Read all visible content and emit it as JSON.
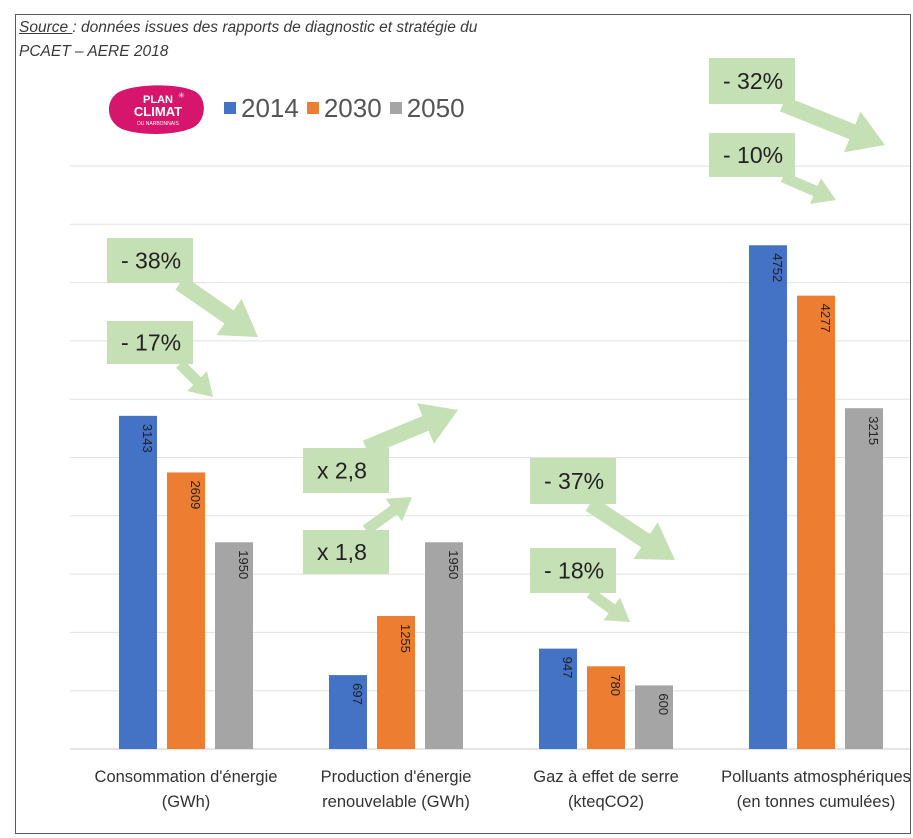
{
  "source": {
    "label": "Source ",
    "text": ": données issues des rapports de diagnostic et stratégie du",
    "line2": "PCAET – AERE 2018"
  },
  "logo": {
    "line1": "PLAN",
    "line2": "CLIMAT",
    "line3": "DU NARBONNAIS",
    "color": "#d6156c"
  },
  "chart_data": {
    "type": "bar",
    "categories": [
      [
        "Consommation d'énergie",
        "(GWh)"
      ],
      [
        "Production d'énergie",
        "renouvelable (GWh)"
      ],
      [
        "Gaz à effet de serre",
        "(kteqCO2)"
      ],
      [
        "Polluants atmosphériques",
        "(en tonnes cumulées)"
      ]
    ],
    "series": [
      {
        "name": "2014",
        "color": "#4472c4",
        "values": [
          3143,
          697,
          947,
          4752
        ]
      },
      {
        "name": "2030",
        "color": "#ed7d31",
        "values": [
          2609,
          1255,
          780,
          4277
        ]
      },
      {
        "name": "2050",
        "color": "#a5a5a5",
        "values": [
          1950,
          1950,
          600,
          3215
        ]
      }
    ],
    "ylim": [
      0,
      5500
    ],
    "grid": true,
    "legend": "top",
    "annotations": [
      {
        "text": "- 38%",
        "category": 0,
        "direction": "down"
      },
      {
        "text": "- 17%",
        "category": 0,
        "direction": "down"
      },
      {
        "text": "x 2,8",
        "category": 1,
        "direction": "up"
      },
      {
        "text": "x 1,8",
        "category": 1,
        "direction": "up"
      },
      {
        "text": "- 37%",
        "category": 2,
        "direction": "down"
      },
      {
        "text": "- 18%",
        "category": 2,
        "direction": "down"
      },
      {
        "text": "- 32%",
        "category": 3,
        "direction": "down"
      },
      {
        "text": "- 10%",
        "category": 3,
        "direction": "down"
      }
    ]
  },
  "annotation_color": "#c5e0b4"
}
